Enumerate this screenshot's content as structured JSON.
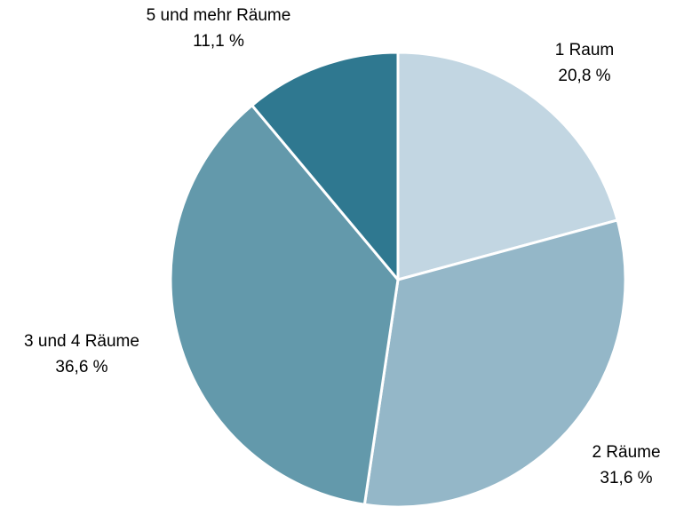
{
  "chart_data": {
    "type": "pie",
    "categories": [
      "1 Raum",
      "2 Räume",
      "3 und 4 Räume",
      "5 und mehr Räume"
    ],
    "values": [
      20.8,
      31.6,
      36.6,
      11.1
    ],
    "value_labels": [
      "20,8 %",
      "31,6 %",
      "36,6 %",
      "11,1 %"
    ],
    "colors": [
      "#c2d6e2",
      "#94b7c8",
      "#6399ab",
      "#2f7890"
    ]
  }
}
